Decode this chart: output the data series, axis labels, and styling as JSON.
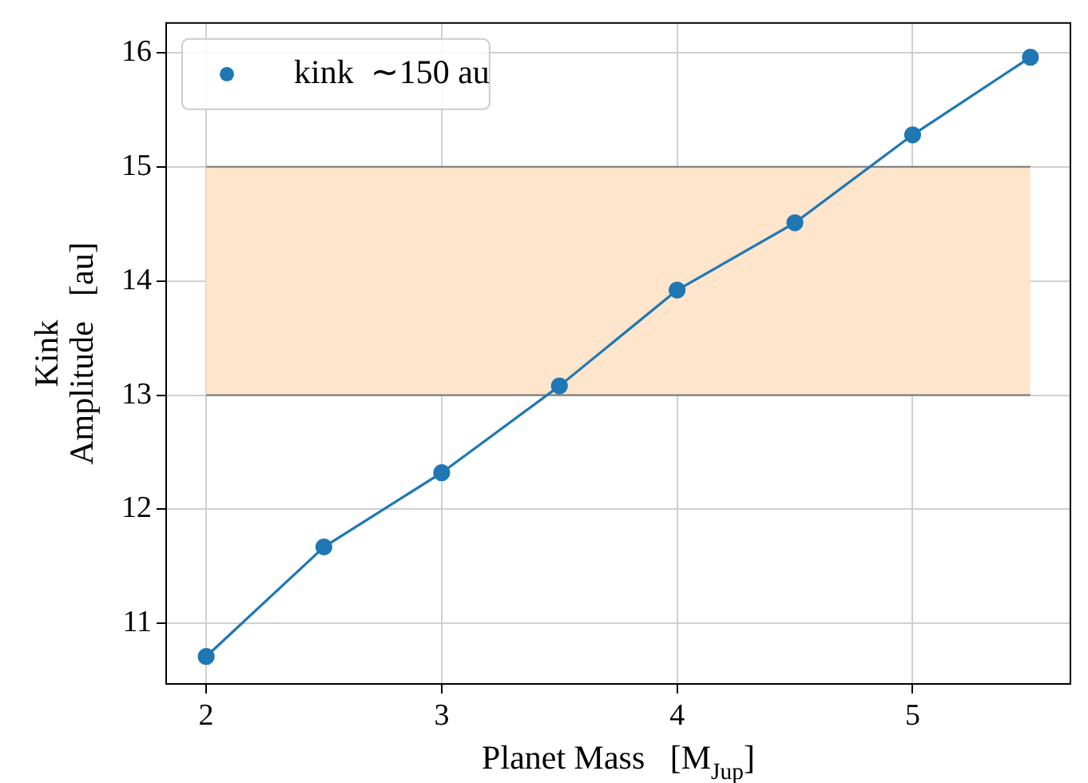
{
  "chart_data": {
    "type": "line",
    "xlabel": "Planet Mass   [M$_{Jup}$]",
    "ylabel": "Kink\nAmplitude   [au]",
    "x": [
      2,
      2.5,
      3,
      3.5,
      4,
      4.5,
      5,
      5.5
    ],
    "series": [
      {
        "name": "kink  ∼150 au",
        "color": "#1f77b4",
        "values": [
          10.71,
          11.67,
          12.32,
          13.08,
          13.92,
          14.51,
          15.28,
          15.96
        ]
      }
    ],
    "xlim": [
      1.83,
      5.67
    ],
    "xticks": [
      2,
      3,
      4,
      5
    ],
    "ylim": [
      10.47,
      16.26
    ],
    "yticks": [
      11,
      12,
      13,
      14,
      15,
      16
    ],
    "bands": [
      {
        "axis": "y",
        "from": 13,
        "to": 15,
        "color": "#ffe5cc"
      }
    ],
    "grid": true,
    "legend": "top left",
    "marker": "circle",
    "line_style": "solid"
  }
}
